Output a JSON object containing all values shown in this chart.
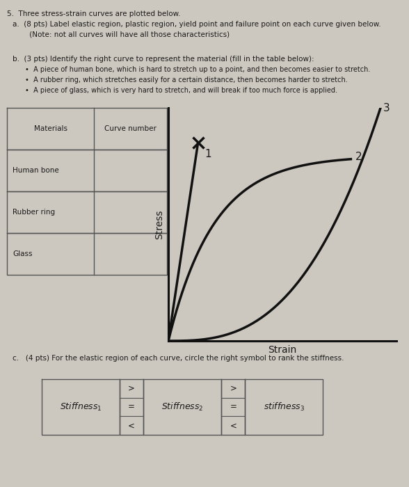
{
  "bg_color": "#ccc8c0",
  "text_color": "#1a1a1a",
  "curve_color": "#111111",
  "table_line_color": "#555555",
  "title_line1": "5.  Three stress-strain curves are plotted below.",
  "part_a_line1": "a.  (8 pts) Label elastic region, plastic region, yield point and failure point on each curve given below.",
  "part_a_line2": "     (Note: not all curves will have all those characteristics)",
  "part_b_line": "b.  (3 pts) Identify the right curve to represent the material (fill in the table below):",
  "bullet1": "A piece of human bone, which is hard to stretch up to a point, and then becomes easier to stretch.",
  "bullet2": "A rubber ring, which stretches easily for a certain distance, then becomes harder to stretch.",
  "bullet3": "A piece of glass, which is very hard to stretch, and will break if too much force is applied.",
  "table_col1_header": "Materials",
  "table_col2_header": "Curve number",
  "table_row1": "Human bone",
  "table_row2": "Rubber ring",
  "table_row3": "Glass",
  "stress_label": "Stress",
  "strain_label": "Strain",
  "curve1_label": "1",
  "curve2_label": "2",
  "curve3_label": "3",
  "part_c_line": "c.   (4 pts) For the elastic region of each curve, circle the right symbol to rank the stiffness.",
  "stiff1": "Stiffness",
  "stiff2": "Stiffness",
  "stiff3": "stiffness",
  "symbols": [
    ">",
    "=",
    "<"
  ]
}
